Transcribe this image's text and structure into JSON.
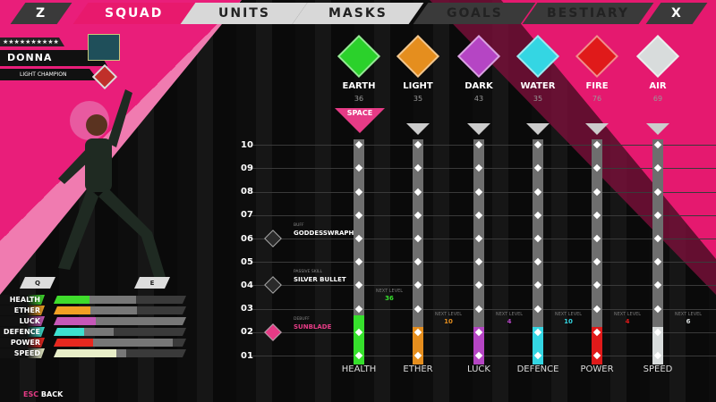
{
  "tabs": {
    "left_key": "Z",
    "right_key": "X",
    "items": [
      {
        "label": "SQUAD",
        "state": "active"
      },
      {
        "label": "UNITS",
        "state": "normal"
      },
      {
        "label": "MASKS",
        "state": "normal"
      },
      {
        "label": "GOALS",
        "state": "disabled"
      },
      {
        "label": "BESTIARY",
        "state": "disabled"
      }
    ]
  },
  "character": {
    "stars": "★★★★★★★★★★",
    "stars_filled": 2,
    "name": "DONNA",
    "rank": "LIGHT CHAMPION",
    "prev_key": "Q",
    "next_key": "E"
  },
  "stat_bars": [
    {
      "label": "HEALTH",
      "color": "#3fdc2c",
      "fill": 0.27,
      "secondary": 0.62
    },
    {
      "label": "ETHER",
      "color": "#f2a024",
      "fill": 0.28,
      "secondary": 0.63
    },
    {
      "label": "LUCK",
      "color": "#c657b8",
      "fill": 0.32,
      "secondary": 1.0
    },
    {
      "label": "DEFENCE",
      "color": "#3de0cf",
      "fill": 0.23,
      "secondary": 0.45
    },
    {
      "label": "POWER",
      "color": "#e7281f",
      "fill": 0.3,
      "secondary": 0.9
    },
    {
      "label": "SPEED",
      "color": "#e8eec8",
      "fill": 0.47,
      "secondary": 0.55
    }
  ],
  "back": {
    "key": "ESC",
    "label": "BACK"
  },
  "elements": [
    {
      "name": "EARTH",
      "value": "36",
      "color": "#2bd12b"
    },
    {
      "name": "LIGHT",
      "value": "35",
      "color": "#e58e1e"
    },
    {
      "name": "DARK",
      "value": "43",
      "color": "#b545c4"
    },
    {
      "name": "WATER",
      "value": "35",
      "color": "#34d6e3"
    },
    {
      "name": "FIRE",
      "value": "76",
      "color": "#e01a1a"
    },
    {
      "name": "AIR",
      "value": "69",
      "color": "#d8dcdc"
    }
  ],
  "selected_hint": "SPACE",
  "levels": [
    "10",
    "09",
    "08",
    "07",
    "06",
    "05",
    "04",
    "03",
    "02",
    "01"
  ],
  "current_level": 2,
  "skills": [
    {
      "type": "BUFF",
      "name": "GODDESSWRAPH",
      "level": "06",
      "unlocked": false
    },
    {
      "type": "PASSIVE SKILL",
      "name": "SILVER BULLET",
      "level": "04",
      "unlocked": false
    },
    {
      "type": "DEBUFF",
      "name": "SUNBLADE",
      "level": "02",
      "unlocked": true
    }
  ],
  "columns": [
    {
      "stat": "HEALTH",
      "color": "#36e02c",
      "level": 2.5,
      "next_label": "NEXT LEVEL",
      "next_value": "36"
    },
    {
      "stat": "ETHER",
      "color": "#e58e1e",
      "level": 2,
      "next_label": "NEXT LEVEL",
      "next_value": "10"
    },
    {
      "stat": "LUCK",
      "color": "#b545c4",
      "level": 2,
      "next_label": "NEXT LEVEL",
      "next_value": "4"
    },
    {
      "stat": "DEFENCE",
      "color": "#34d6e3",
      "level": 2,
      "next_label": "NEXT LEVEL",
      "next_value": "10"
    },
    {
      "stat": "POWER",
      "color": "#e01a1a",
      "level": 2,
      "next_label": "NEXT LEVEL",
      "next_value": "4"
    },
    {
      "stat": "SPEED",
      "color": "#d8dcdc",
      "level": 2,
      "next_label": "NEXT LEVEL",
      "next_value": "6"
    }
  ]
}
